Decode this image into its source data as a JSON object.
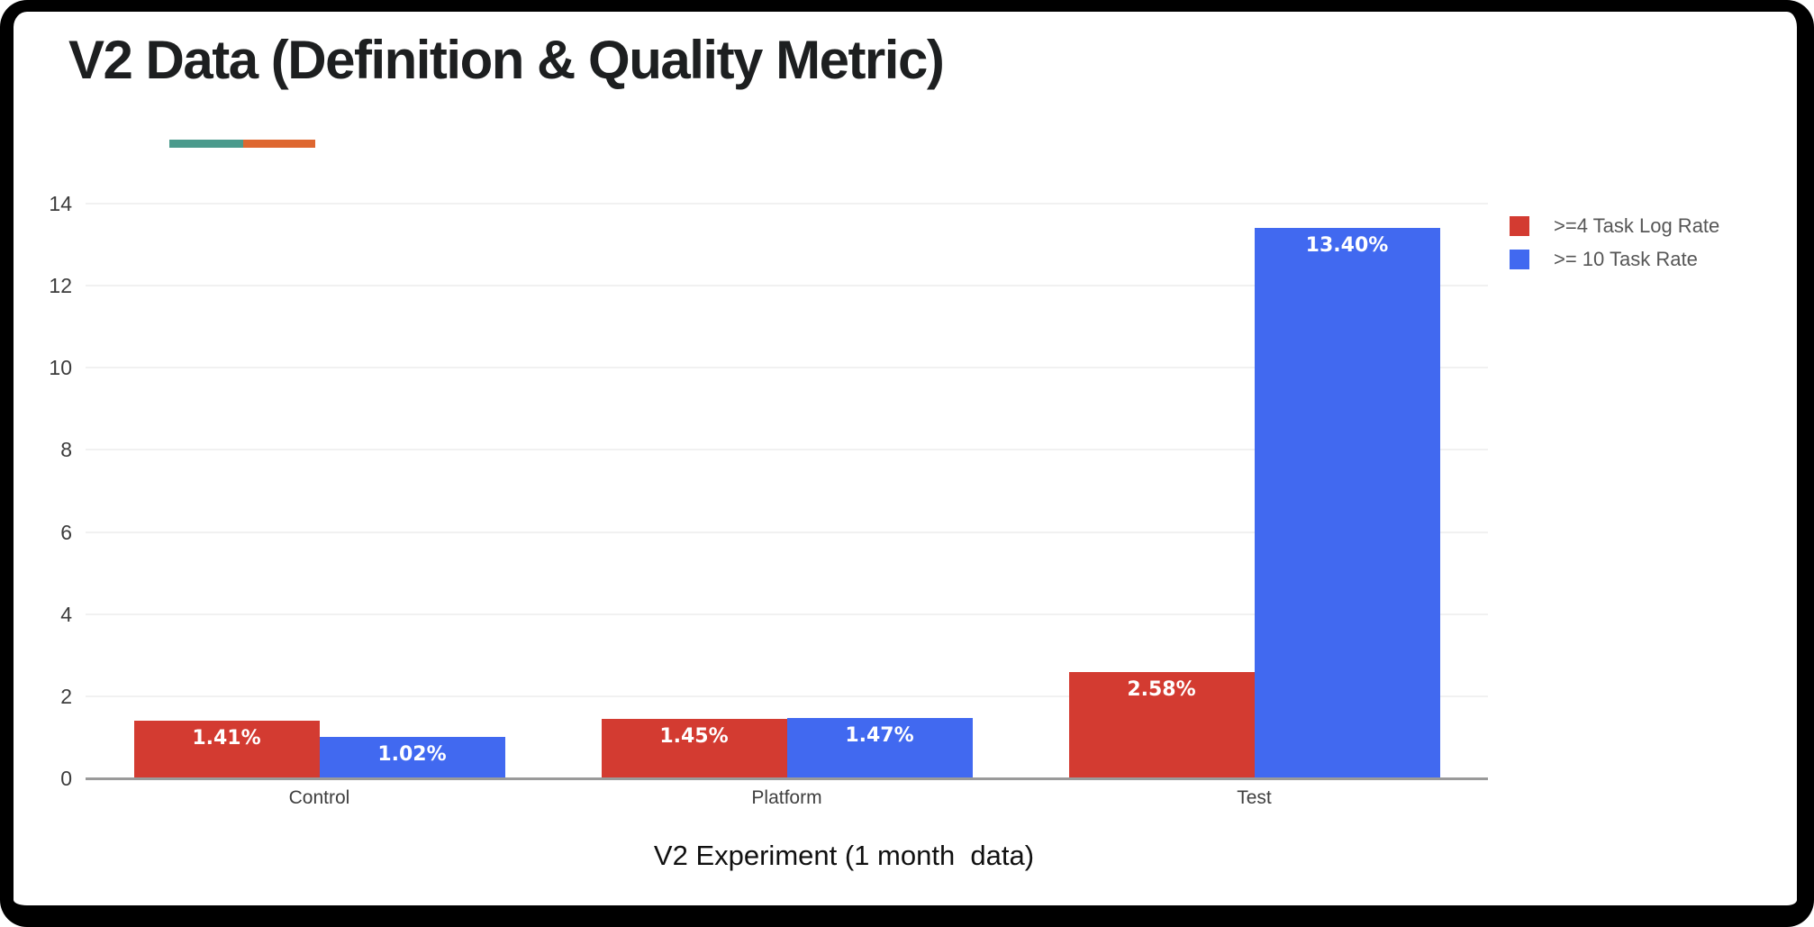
{
  "slide": {
    "title": "V2 Data (Definition & Quality Metric)",
    "accent_teal": "#4A9A8C",
    "accent_orange": "#DE6730",
    "frame_color": "#000000",
    "background": "#ffffff"
  },
  "chart_data": {
    "type": "bar",
    "title": "",
    "categories": [
      "Control",
      "Platform",
      "Test"
    ],
    "series": [
      {
        "name": ">=4 Task Log Rate",
        "color": "#D33B31",
        "values": [
          1.41,
          1.45,
          2.58
        ],
        "labels": [
          "1.41%",
          "1.45%",
          "2.58%"
        ]
      },
      {
        "name": ">= 10 Task Rate",
        "color": "#4169F0",
        "values": [
          1.02,
          1.47,
          13.4
        ],
        "labels": [
          "1.02%",
          "1.47%",
          "13.40%"
        ]
      }
    ],
    "xlabel": "V2 Experiment (1 month  data)",
    "ylabel": "",
    "ylim": [
      0,
      14
    ],
    "yticks": [
      0,
      2,
      4,
      6,
      8,
      10,
      12,
      14
    ],
    "grid": true,
    "legend_position": "top-right",
    "gridline_color": "#F1F1F1",
    "axis_line_color": "#9A9A9A",
    "tick_label_color": "#3c3c3c"
  }
}
